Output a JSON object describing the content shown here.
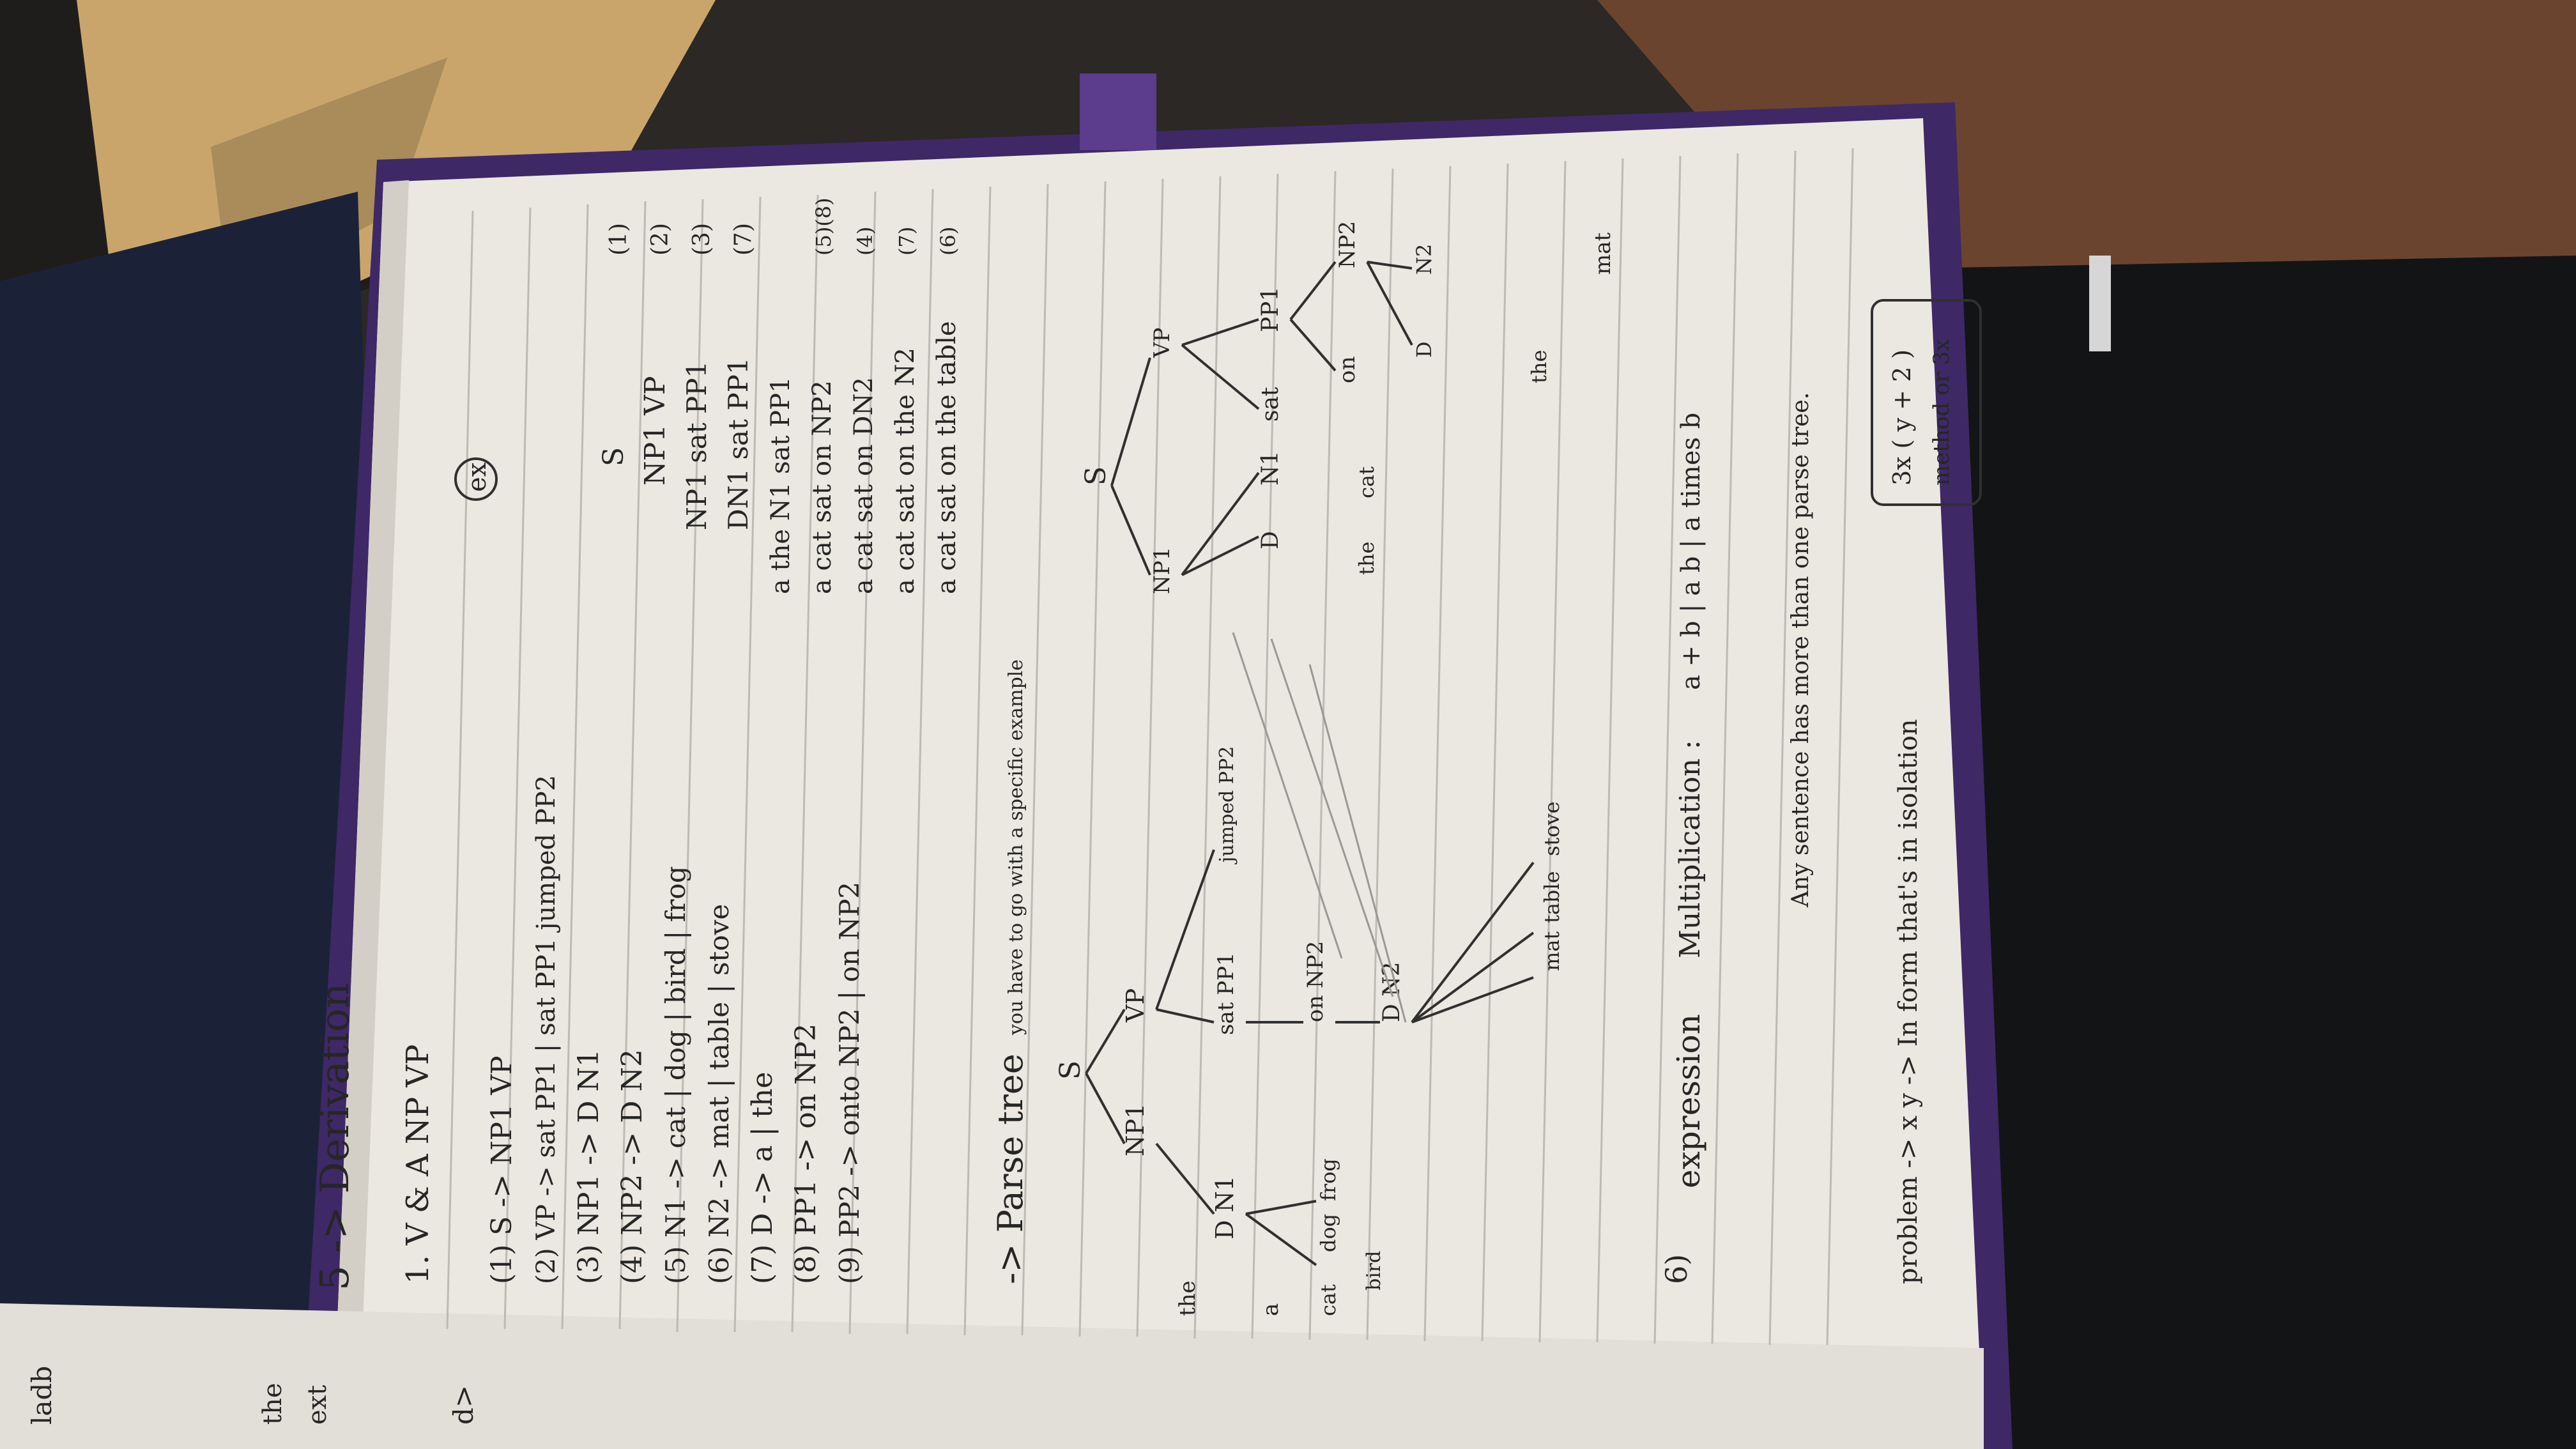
{
  "photo": {
    "subject": "notebook-page-linguistics-notes",
    "colors": {
      "paper": "#eceae4",
      "cover": "#4a2f73",
      "ink": "#262626",
      "lines": "#bdbab3"
    }
  },
  "notes": {
    "heading": "5 -> Derivation",
    "underline_line": "1. V & A NP VP",
    "example_marker": "ex",
    "grammar_rules": [
      "(1) S -> NP1 VP",
      "(2) VP -> sat PP1 | sat PP1 jumped PP2",
      "(3) NP1 -> D N1",
      "(4) NP2 -> D N2",
      "(5) N1 -> cat | dog | bird | frog",
      "(6) N2 -> mat | table | stove",
      "(7) D -> a | the",
      "(8) PP1 -> on NP2",
      "(9) PP2 -> onto NP2 | on NP2"
    ],
    "derivation_steps": [
      "S",
      "NP1 VP",
      "NP1 sat PP1",
      "DN1 sat PP1",
      "a the N1 sat PP1",
      "a cat sat on NP2",
      "a cat sat on DN2",
      "a cat sat on the N2",
      "a cat sat on the table"
    ],
    "derivation_numbers": [
      "(1)",
      "(2)",
      "(3)",
      "(7)",
      "(5)(8)",
      "(4)",
      "(7)",
      "(6)"
    ],
    "parse_tree_heading": "-> Parse tree",
    "parse_tree_note": "you have to go with a specific example",
    "tree_left": {
      "root": "S",
      "nodes": [
        "NP1",
        "VP",
        "D N1",
        "sat PP1",
        "jumped PP2",
        "on NP2",
        "D N2"
      ],
      "leaves": [
        "a",
        "the",
        "cat",
        "dog",
        "frog",
        "bird",
        "mat",
        "table",
        "stove"
      ]
    },
    "tree_right": {
      "root": "S",
      "nodes": [
        "NP1",
        "VP",
        "D",
        "N1",
        "sat",
        "PP1",
        "on",
        "NP2",
        "D",
        "N2"
      ],
      "leaves": [
        "the",
        "cat",
        "the",
        "mat"
      ]
    },
    "item6_number": "6)",
    "expression_label": "expression",
    "multiplication_label": "Multiplication :",
    "multiplication_expr": "a + b | a b | a times b",
    "ambiguity_note": "Any sentence has more than one parse tree.",
    "problem_line": "problem -> x y -> In form that's in isolation",
    "box_expr": "3x ( y + 2 )",
    "box_note": "method or 3x"
  },
  "facing_page": {
    "fragments": [
      "ladb",
      "the",
      "ext",
      "d>"
    ]
  }
}
